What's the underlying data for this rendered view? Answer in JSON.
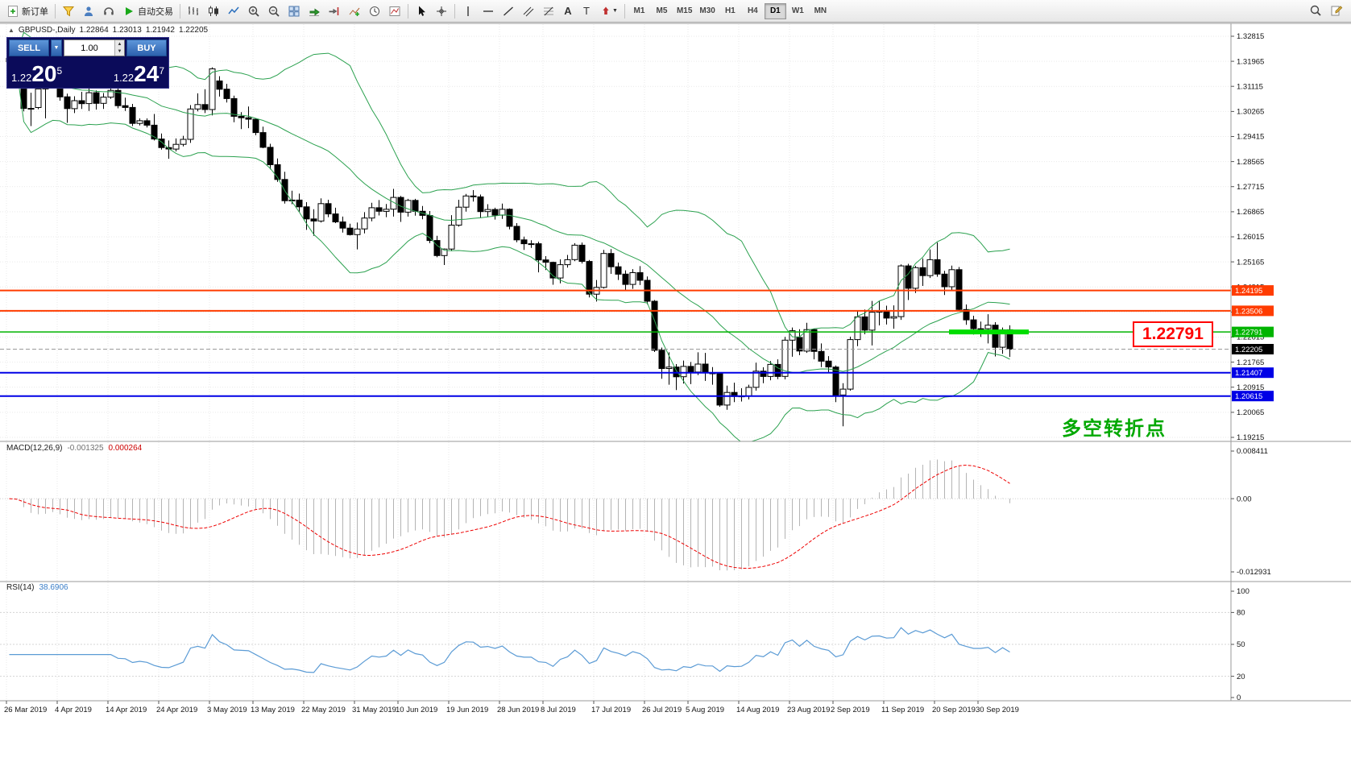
{
  "toolbar": {
    "new_order": "新订单",
    "autotrading": "自动交易",
    "timeframes": [
      "M1",
      "M5",
      "M15",
      "M30",
      "H1",
      "H4",
      "D1",
      "W1",
      "MN"
    ],
    "active_timeframe": "D1"
  },
  "trade_panel": {
    "sell_label": "SELL",
    "buy_label": "BUY",
    "volume": "1.00",
    "sell_price_main": "1.22",
    "sell_price_big": "20",
    "sell_price_sup": "5",
    "buy_price_main": "1.22",
    "buy_price_big": "24",
    "buy_price_sup": "7"
  },
  "symbol_header": {
    "title": "GBPUSD-,Daily",
    "open": "1.22864",
    "high": "1.23013",
    "low": "1.21942",
    "close": "1.22205"
  },
  "indicators": {
    "macd_title": "MACD(12,26,9)",
    "macd_v1": "-0.001325",
    "macd_v2": "0.000264",
    "rsi_title": "RSI(14)",
    "rsi_value": "38.6906"
  },
  "callout": "1.22791",
  "annotation": "多空转折点",
  "chart_data": {
    "type": "candlestick",
    "symbol": "GBPUSD-",
    "timeframe": "Daily",
    "last_ohlc": [
      1.22864,
      1.23013,
      1.21942,
      1.22205
    ],
    "indicator_list": [
      {
        "name": "Bollinger Bands",
        "period": 20,
        "deviation": 2,
        "color": "#2ba14f"
      },
      {
        "name": "MACD",
        "params": [
          12,
          26,
          9
        ],
        "current": [
          -0.001325,
          0.000264
        ]
      },
      {
        "name": "RSI",
        "period": 14,
        "current": 38.6906
      }
    ],
    "price_axis_ticks": [
      "1.32815",
      "1.31965",
      "1.31115",
      "1.30265",
      "1.29415",
      "1.28565",
      "1.27715",
      "1.26865",
      "1.26015",
      "1.25165",
      "1.24315",
      "1.23465",
      "1.22615",
      "1.21765",
      "1.20915",
      "1.20065",
      "1.19215"
    ],
    "hlines": [
      {
        "price": 1.24195,
        "label": "1.24195",
        "color": "#ff3c00",
        "width": 2
      },
      {
        "price": 1.23506,
        "label": "1.23506",
        "color": "#ff3c00",
        "width": 2
      },
      {
        "price": 1.22791,
        "label": "1.22791",
        "color": "#00b400",
        "width": 1.5
      },
      {
        "price": 1.21407,
        "label": "1.21407",
        "color": "#0000e6",
        "width": 2
      },
      {
        "price": 1.20615,
        "label": "1.20615",
        "color": "#0000e6",
        "width": 2
      }
    ],
    "current_price": 1.22205,
    "current_price_label": "1.22205",
    "highlight_segment": {
      "price": 1.22791,
      "from": 130,
      "to": 141,
      "color": "#00dd00",
      "width": 6
    },
    "macd_axis": [
      "0.008411",
      "0.00",
      "-0.012931"
    ],
    "macd_range": [
      0.008411,
      -0.012931
    ],
    "rsi_axis": [
      100,
      80,
      50,
      20,
      0
    ],
    "x_labels": [
      {
        "i": 0,
        "t": "26 Mar 2019"
      },
      {
        "i": 7,
        "t": "4 Apr 2019"
      },
      {
        "i": 14,
        "t": "14 Apr 2019"
      },
      {
        "i": 21,
        "t": "24 Apr 2019"
      },
      {
        "i": 28,
        "t": "3 May 2019"
      },
      {
        "i": 34,
        "t": "13 May 2019"
      },
      {
        "i": 41,
        "t": "22 May 2019"
      },
      {
        "i": 48,
        "t": "31 May 2019"
      },
      {
        "i": 54,
        "t": "10 Jun 2019"
      },
      {
        "i": 61,
        "t": "19 Jun 2019"
      },
      {
        "i": 68,
        "t": "28 Jun 2019"
      },
      {
        "i": 74,
        "t": "8 Jul 2019"
      },
      {
        "i": 81,
        "t": "17 Jul 2019"
      },
      {
        "i": 88,
        "t": "26 Jul 2019"
      },
      {
        "i": 94,
        "t": "5 Aug 2019"
      },
      {
        "i": 101,
        "t": "14 Aug 2019"
      },
      {
        "i": 108,
        "t": "23 Aug 2019"
      },
      {
        "i": 114,
        "t": "2 Sep 2019"
      },
      {
        "i": 121,
        "t": "11 Sep 2019"
      },
      {
        "i": 128,
        "t": "20 Sep 2019"
      },
      {
        "i": 134,
        "t": "30 Sep 2019"
      }
    ],
    "candles": [
      [
        1.3195,
        1.3245,
        1.316,
        1.3207
      ],
      [
        1.3207,
        1.323,
        1.3143,
        1.3186
      ],
      [
        1.3186,
        1.3198,
        1.3027,
        1.3037
      ],
      [
        1.3037,
        1.309,
        1.2977,
        1.3035
      ],
      [
        1.304,
        1.3121,
        1.3034,
        1.3103
      ],
      [
        1.3103,
        1.3149,
        1.3003,
        1.3133
      ],
      [
        1.3133,
        1.3196,
        1.312,
        1.3159
      ],
      [
        1.3159,
        1.3175,
        1.3063,
        1.3076
      ],
      [
        1.3076,
        1.3087,
        1.2988,
        1.3036
      ],
      [
        1.3036,
        1.3078,
        1.3021,
        1.3063
      ],
      [
        1.3063,
        1.3093,
        1.3035,
        1.3053
      ],
      [
        1.3053,
        1.312,
        1.3028,
        1.309
      ],
      [
        1.309,
        1.3098,
        1.3033,
        1.3054
      ],
      [
        1.3054,
        1.3089,
        1.3035,
        1.3075
      ],
      [
        1.3075,
        1.3118,
        1.3069,
        1.3098
      ],
      [
        1.3098,
        1.3106,
        1.3037,
        1.3046
      ],
      [
        1.3046,
        1.3073,
        1.3028,
        1.304
      ],
      [
        1.304,
        1.3052,
        1.2977,
        1.2986
      ],
      [
        1.2986,
        1.3003,
        1.2979,
        1.2995
      ],
      [
        1.2995,
        1.3003,
        1.2972,
        1.298
      ],
      [
        1.298,
        1.3018,
        1.2928,
        1.2933
      ],
      [
        1.2933,
        1.2952,
        1.2897,
        1.2904
      ],
      [
        1.2904,
        1.2928,
        1.2866,
        1.2899
      ],
      [
        1.2899,
        1.2935,
        1.2891,
        1.2915
      ],
      [
        1.2915,
        1.2944,
        1.2908,
        1.2932
      ],
      [
        1.2932,
        1.3048,
        1.292,
        1.3035
      ],
      [
        1.3035,
        1.3088,
        1.3027,
        1.305
      ],
      [
        1.305,
        1.3102,
        1.3021,
        1.3033
      ],
      [
        1.3033,
        1.3176,
        1.3013,
        1.3171
      ],
      [
        1.313,
        1.3146,
        1.3077,
        1.3102
      ],
      [
        1.3102,
        1.312,
        1.3057,
        1.307
      ],
      [
        1.307,
        1.308,
        1.299,
        1.301
      ],
      [
        1.301,
        1.3024,
        1.2967,
        1.3005
      ],
      [
        1.3005,
        1.3043,
        1.297,
        1.3
      ],
      [
        1.3,
        1.3003,
        1.2946,
        1.2955
      ],
      [
        1.2955,
        1.2975,
        1.2902,
        1.2905
      ],
      [
        1.2905,
        1.2917,
        1.283,
        1.2846
      ],
      [
        1.2846,
        1.2867,
        1.2788,
        1.2796
      ],
      [
        1.2796,
        1.2822,
        1.2714,
        1.2724
      ],
      [
        1.2724,
        1.2758,
        1.2712,
        1.2726
      ],
      [
        1.2726,
        1.2748,
        1.2685,
        1.2703
      ],
      [
        1.2703,
        1.2719,
        1.2625,
        1.2662
      ],
      [
        1.2662,
        1.2695,
        1.2605,
        1.2655
      ],
      [
        1.2655,
        1.2732,
        1.265,
        1.2714
      ],
      [
        1.2714,
        1.2727,
        1.2668,
        1.2679
      ],
      [
        1.2679,
        1.27,
        1.2648,
        1.2652
      ],
      [
        1.2652,
        1.267,
        1.2616,
        1.2631
      ],
      [
        1.2631,
        1.2646,
        1.2606,
        1.2609
      ],
      [
        1.2609,
        1.265,
        1.2559,
        1.2628
      ],
      [
        1.2628,
        1.2685,
        1.2613,
        1.2665
      ],
      [
        1.2665,
        1.2717,
        1.2654,
        1.27
      ],
      [
        1.27,
        1.2726,
        1.2674,
        1.2688
      ],
      [
        1.2688,
        1.2713,
        1.2668,
        1.2695
      ],
      [
        1.2695,
        1.2764,
        1.267,
        1.2735
      ],
      [
        1.2735,
        1.274,
        1.2652,
        1.2685
      ],
      [
        1.2685,
        1.273,
        1.267,
        1.2725
      ],
      [
        1.2725,
        1.273,
        1.2673,
        1.2688
      ],
      [
        1.2688,
        1.2706,
        1.2661,
        1.2674
      ],
      [
        1.2674,
        1.2689,
        1.258,
        1.2589
      ],
      [
        1.2589,
        1.2605,
        1.2532,
        1.2538
      ],
      [
        1.2538,
        1.2562,
        1.2506,
        1.256
      ],
      [
        1.256,
        1.2675,
        1.2553,
        1.2641
      ],
      [
        1.2641,
        1.2727,
        1.2636,
        1.2702
      ],
      [
        1.2702,
        1.2747,
        1.2687,
        1.274
      ],
      [
        1.274,
        1.276,
        1.2721,
        1.2737
      ],
      [
        1.2737,
        1.2745,
        1.2665,
        1.2687
      ],
      [
        1.2687,
        1.2712,
        1.2668,
        1.2694
      ],
      [
        1.2694,
        1.27,
        1.266,
        1.2675
      ],
      [
        1.2675,
        1.2714,
        1.2662,
        1.2695
      ],
      [
        1.2695,
        1.2698,
        1.2627,
        1.2637
      ],
      [
        1.2637,
        1.2648,
        1.2583,
        1.2591
      ],
      [
        1.2591,
        1.2602,
        1.2557,
        1.2578
      ],
      [
        1.2578,
        1.259,
        1.2564,
        1.2578
      ],
      [
        1.2578,
        1.2585,
        1.2481,
        1.2523
      ],
      [
        1.2523,
        1.2536,
        1.2489,
        1.2515
      ],
      [
        1.2515,
        1.2517,
        1.2439,
        1.2462
      ],
      [
        1.2462,
        1.2525,
        1.2444,
        1.2507
      ],
      [
        1.2507,
        1.254,
        1.2497,
        1.2524
      ],
      [
        1.2524,
        1.258,
        1.2519,
        1.2573
      ],
      [
        1.2573,
        1.2582,
        1.2511,
        1.2518
      ],
      [
        1.2518,
        1.2523,
        1.2396,
        1.2407
      ],
      [
        1.2407,
        1.2455,
        1.2382,
        1.243
      ],
      [
        1.243,
        1.2557,
        1.2426,
        1.2545
      ],
      [
        1.2545,
        1.256,
        1.2476,
        1.25
      ],
      [
        1.25,
        1.2514,
        1.2455,
        1.2475
      ],
      [
        1.2475,
        1.2488,
        1.2419,
        1.244
      ],
      [
        1.244,
        1.2492,
        1.2425,
        1.248
      ],
      [
        1.248,
        1.2502,
        1.2438,
        1.2454
      ],
      [
        1.2454,
        1.2467,
        1.2373,
        1.2383
      ],
      [
        1.2383,
        1.2387,
        1.2211,
        1.2217
      ],
      [
        1.2217,
        1.2226,
        1.212,
        1.2155
      ],
      [
        1.2155,
        1.221,
        1.21,
        1.216
      ],
      [
        1.216,
        1.217,
        1.2082,
        1.2127
      ],
      [
        1.2127,
        1.2182,
        1.2104,
        1.2162
      ],
      [
        1.2162,
        1.2177,
        1.2102,
        1.2143
      ],
      [
        1.2143,
        1.221,
        1.2133,
        1.217
      ],
      [
        1.217,
        1.2208,
        1.2113,
        1.214
      ],
      [
        1.214,
        1.216,
        1.21,
        1.2138
      ],
      [
        1.2138,
        1.214,
        1.2025,
        1.2031
      ],
      [
        1.2031,
        1.2097,
        1.2015,
        1.2074
      ],
      [
        1.2074,
        1.2107,
        1.2041,
        1.206
      ],
      [
        1.206,
        1.2088,
        1.2043,
        1.2062
      ],
      [
        1.2062,
        1.21,
        1.205,
        1.2091
      ],
      [
        1.2091,
        1.2175,
        1.208,
        1.2146
      ],
      [
        1.2146,
        1.2159,
        1.2105,
        1.2128
      ],
      [
        1.2128,
        1.218,
        1.2115,
        1.2169
      ],
      [
        1.2169,
        1.2186,
        1.2119,
        1.2128
      ],
      [
        1.2128,
        1.2262,
        1.2118,
        1.2251
      ],
      [
        1.2251,
        1.2294,
        1.2195,
        1.2283
      ],
      [
        1.226,
        1.2288,
        1.22,
        1.2214
      ],
      [
        1.2214,
        1.231,
        1.2208,
        1.2287
      ],
      [
        1.2287,
        1.2289,
        1.2186,
        1.2213
      ],
      [
        1.2213,
        1.224,
        1.216,
        1.218
      ],
      [
        1.218,
        1.2197,
        1.214,
        1.216
      ],
      [
        1.216,
        1.2165,
        1.2041,
        1.2065
      ],
      [
        1.2065,
        1.2105,
        1.1959,
        1.2085
      ],
      [
        1.2085,
        1.2263,
        1.208,
        1.2253
      ],
      [
        1.2253,
        1.2353,
        1.2231,
        1.233
      ],
      [
        1.233,
        1.2355,
        1.2271,
        1.2285
      ],
      [
        1.2285,
        1.2384,
        1.2233,
        1.2346
      ],
      [
        1.2346,
        1.2385,
        1.2301,
        1.2351
      ],
      [
        1.2351,
        1.2368,
        1.2304,
        1.2326
      ],
      [
        1.2326,
        1.2369,
        1.229,
        1.2331
      ],
      [
        1.2331,
        1.2508,
        1.232,
        1.2503
      ],
      [
        1.2503,
        1.251,
        1.2387,
        1.2427
      ],
      [
        1.2427,
        1.2503,
        1.2411,
        1.2497
      ],
      [
        1.2497,
        1.2528,
        1.2435,
        1.247
      ],
      [
        1.247,
        1.2559,
        1.2462,
        1.2524
      ],
      [
        1.2524,
        1.2582,
        1.2466,
        1.2475
      ],
      [
        1.2475,
        1.2486,
        1.2404,
        1.2432
      ],
      [
        1.2432,
        1.2504,
        1.242,
        1.249
      ],
      [
        1.249,
        1.2499,
        1.2352,
        1.2355
      ],
      [
        1.2355,
        1.2372,
        1.2303,
        1.232
      ],
      [
        1.232,
        1.2334,
        1.227,
        1.229
      ],
      [
        1.229,
        1.2314,
        1.2262,
        1.229
      ],
      [
        1.229,
        1.2339,
        1.224,
        1.2302
      ],
      [
        1.2302,
        1.2312,
        1.2196,
        1.2227
      ],
      [
        1.2227,
        1.2294,
        1.2205,
        1.2286
      ],
      [
        1.22864,
        1.23013,
        1.21942,
        1.22205
      ]
    ]
  }
}
